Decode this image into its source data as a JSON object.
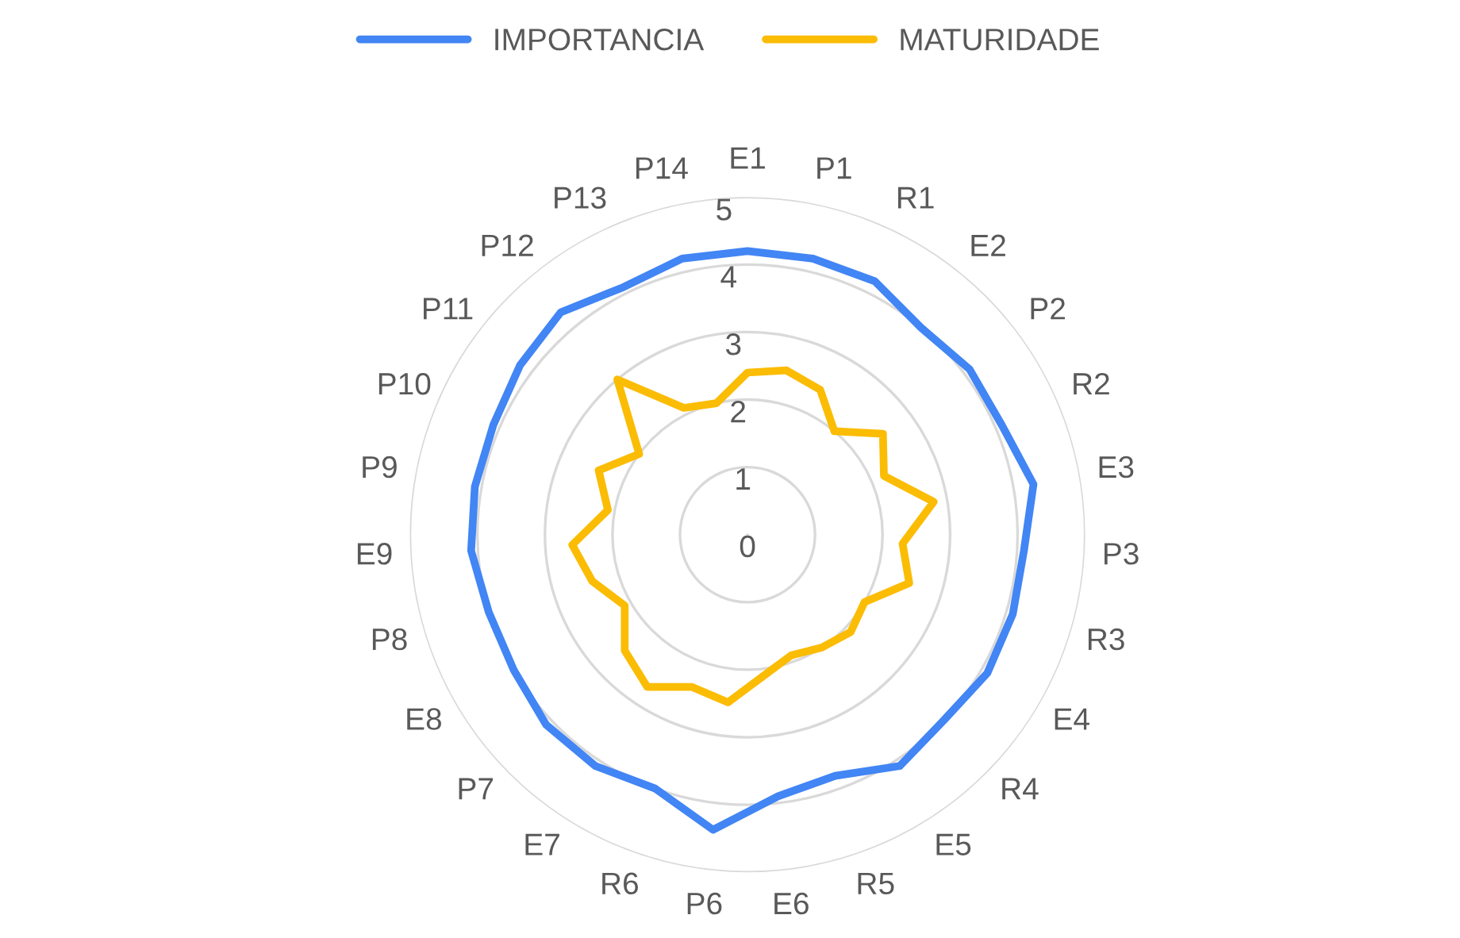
{
  "chart_data": {
    "type": "radar",
    "categories": [
      "E1",
      "P1",
      "R1",
      "E2",
      "P2",
      "R2",
      "E3",
      "P3",
      "R3",
      "E4",
      "R4",
      "E5",
      "R5",
      "E6",
      "P6",
      "R6",
      "E7",
      "P7",
      "E8",
      "P8",
      "E9",
      "P9",
      "P10",
      "P11",
      "P12",
      "P13",
      "P14"
    ],
    "series": [
      {
        "name": "IMPORTANCIA",
        "color": "#4285f4",
        "values": [
          4.2,
          4.2,
          4.2,
          4.0,
          4.1,
          4.1,
          4.3,
          4.1,
          4.1,
          4.1,
          4.0,
          4.1,
          3.8,
          3.9,
          4.4,
          4.0,
          4.1,
          4.1,
          4.0,
          4.0,
          4.1,
          4.1,
          4.1,
          4.2,
          4.3,
          4.1,
          4.2
        ]
      },
      {
        "name": "MATURIDADE",
        "color": "#fbbc04",
        "values": [
          2.4,
          2.5,
          2.4,
          2.0,
          2.5,
          2.2,
          2.8,
          2.3,
          2.5,
          2.0,
          2.1,
          2.0,
          1.9,
          2.1,
          2.5,
          2.4,
          2.7,
          2.5,
          2.1,
          2.4,
          2.6,
          2.1,
          2.4,
          2.0,
          3.0,
          2.1,
          2.0
        ]
      }
    ],
    "ylim": [
      0,
      5
    ],
    "yticks": [
      0,
      1,
      2,
      3,
      4,
      5
    ],
    "grid": "y",
    "legend": "top",
    "line_style": "solid",
    "marker": "none"
  }
}
